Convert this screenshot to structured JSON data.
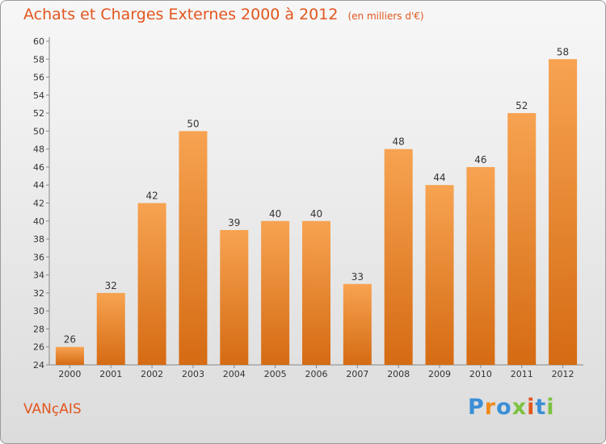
{
  "title": "Achats et Charges Externes 2000 à 2012",
  "title_unit": "(en milliers d'€)",
  "place": "VANçAIS",
  "brand": {
    "name": "Proxiti",
    "letters": [
      {
        "ch": "P",
        "color": "#3b8fd6"
      },
      {
        "ch": "r",
        "color": "#f08a1c"
      },
      {
        "ch": "o",
        "color": "#3b8fd6"
      },
      {
        "ch": "x",
        "color": "#7cc242"
      },
      {
        "ch": "i",
        "color": "#e2561e"
      },
      {
        "ch": "t",
        "color": "#3b8fd6"
      },
      {
        "ch": "i",
        "color": "#7cc242"
      }
    ]
  },
  "colors": {
    "bar_top": "#f7a351",
    "bar_bottom": "#d56b13",
    "accent": "#e2561e",
    "text": "#333333"
  },
  "chart_data": {
    "type": "bar",
    "title": "Achats et Charges Externes 2000 à 2012",
    "categories": [
      "2000",
      "2001",
      "2002",
      "2003",
      "2004",
      "2005",
      "2006",
      "2007",
      "2008",
      "2009",
      "2010",
      "2011",
      "2012"
    ],
    "values": [
      26,
      32,
      42,
      50,
      39,
      40,
      40,
      33,
      48,
      44,
      46,
      52,
      58
    ],
    "ylim": [
      24,
      60
    ],
    "yticks": [
      24,
      26,
      28,
      30,
      32,
      34,
      36,
      38,
      40,
      42,
      44,
      46,
      48,
      50,
      52,
      54,
      56,
      58,
      60
    ],
    "grid": false,
    "data_labels": true
  }
}
